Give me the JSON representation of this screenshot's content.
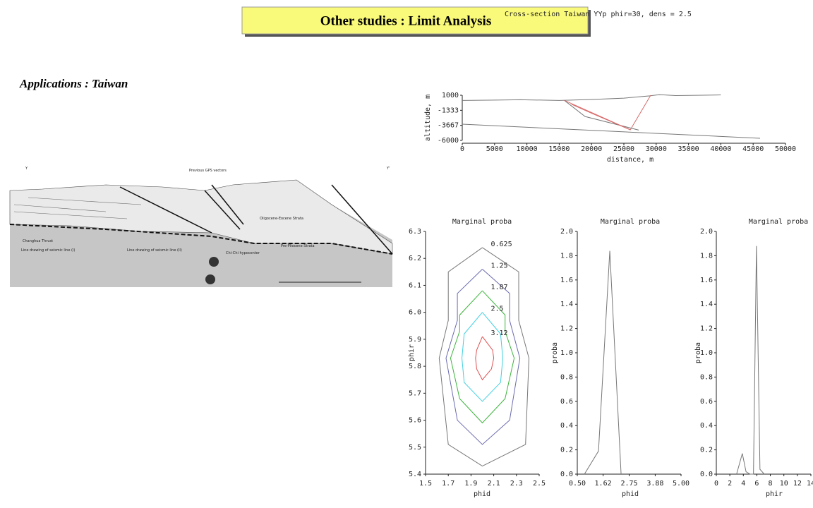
{
  "header": {
    "title": "Other studies : Limit Analysis"
  },
  "subtitle": "Applications : Taiwan",
  "figure": {
    "labels": [
      "Y",
      "Y'",
      "Previous GPS vectors",
      "Changhua Thrust",
      "Line drawing of seismic line (I)",
      "Line drawing of seismic line (II)",
      "Chi-Chi hypocenter",
      "Pre-Pliocene Strata",
      "Oligocene-Eocene Strata"
    ]
  },
  "chart_data": [
    {
      "type": "line",
      "title": "Cross-section Taiwan YYp phir=30, dens = 2.5",
      "xlabel": "distance, m",
      "ylabel": "altitude, m",
      "xlim": [
        0,
        50000
      ],
      "xticks": [
        0,
        5000,
        10000,
        15000,
        20000,
        25000,
        30000,
        35000,
        40000,
        45000,
        50000
      ],
      "ylim": [
        -6000,
        1000
      ],
      "yticks": [
        -6000,
        -3667,
        -1333,
        1000
      ],
      "series": [
        {
          "color": "#777777",
          "x": [
            0,
            5000,
            9000,
            15000,
            20000,
            25000,
            29000,
            30500,
            33000,
            37000,
            40000
          ],
          "values": [
            200,
            250,
            300,
            200,
            350,
            550,
            900,
            1100,
            950,
            1000,
            1050
          ]
        },
        {
          "color": "#777777",
          "x": [
            15800,
            19000,
            27300
          ],
          "values": [
            200,
            -2300,
            -4400
          ]
        },
        {
          "color": "#d86a6a",
          "x": [
            15800,
            26000,
            29150
          ],
          "values": [
            200,
            -4360,
            1000
          ]
        },
        {
          "color": "#d86a6a",
          "x": [
            16900,
            19800,
            26000
          ],
          "values": [
            -400,
            -1700,
            -4360
          ]
        },
        {
          "color": "#777777",
          "x": [
            0,
            46070
          ],
          "values": [
            -3485,
            -5670
          ]
        }
      ]
    },
    {
      "type": "contour",
      "title": "Marginal proba",
      "xlabel": "phid",
      "ylabel": "phir",
      "xlim": [
        1.5,
        2.5
      ],
      "xticks": [
        1.5,
        1.7,
        1.9,
        2.1,
        2.3,
        2.5
      ],
      "ylim": [
        5.4,
        6.3
      ],
      "yticks": [
        5.4,
        5.5,
        5.6,
        5.7,
        5.8,
        5.9,
        {
          "value": 6,
          "label": "6.0"
        },
        6.1,
        6.2,
        6.3
      ],
      "contours": [
        {
          "level": 0.625,
          "color": "#777777",
          "x": [
            2.0,
            2.32,
            2.32,
            2.41,
            2.38,
            2.0,
            1.7,
            1.62,
            1.7,
            1.7,
            2.0
          ],
          "y": [
            6.24,
            6.15,
            5.97,
            5.83,
            5.51,
            5.43,
            5.51,
            5.83,
            5.97,
            6.15,
            6.24
          ]
        },
        {
          "level": 1.25,
          "color": "#6a6ab0",
          "x": [
            2.0,
            2.24,
            2.24,
            2.33,
            2.24,
            2.0,
            1.78,
            1.68,
            1.78,
            1.78,
            2.0
          ],
          "y": [
            6.16,
            6.07,
            5.97,
            5.83,
            5.6,
            5.51,
            5.6,
            5.83,
            5.97,
            6.07,
            6.16
          ]
        },
        {
          "level": 1.87,
          "color": "#3cb43c",
          "x": [
            2.0,
            2.2,
            2.2,
            2.28,
            2.2,
            2.0,
            1.8,
            1.72,
            1.8,
            1.8,
            2.0
          ],
          "y": [
            6.08,
            5.99,
            5.93,
            5.83,
            5.68,
            5.59,
            5.68,
            5.83,
            5.93,
            5.99,
            6.08
          ]
        },
        {
          "level": 2.5,
          "color": "#40d0e0",
          "x": [
            2.0,
            2.16,
            2.18,
            2.16,
            2.0,
            1.84,
            1.82,
            1.84,
            2.0
          ],
          "y": [
            6.0,
            5.92,
            5.83,
            5.74,
            5.67,
            5.74,
            5.83,
            5.92,
            6.0
          ]
        },
        {
          "level": 3.12,
          "color": "#e05050",
          "x": [
            2.0,
            2.09,
            2.1,
            2.08,
            2.0,
            1.95,
            1.94,
            1.95,
            2.0
          ],
          "y": [
            5.91,
            5.86,
            5.83,
            5.79,
            5.75,
            5.79,
            5.83,
            5.86,
            5.91
          ]
        }
      ]
    },
    {
      "type": "line",
      "title": "Marginal proba",
      "xlabel": "phid",
      "ylabel": "proba",
      "xlim": [
        0.5,
        5.0
      ],
      "xticks": [
        {
          "value": 0.5,
          "label": "0.50"
        },
        1.62,
        2.75,
        3.88,
        {
          "value": 5,
          "label": "5.00"
        }
      ],
      "ylim": [
        0,
        2.0
      ],
      "yticks": [
        {
          "value": 0,
          "label": "0.0"
        },
        0.2,
        0.4,
        0.6,
        0.8,
        {
          "value": 1,
          "label": "1.0"
        },
        1.2,
        1.4,
        1.6,
        1.8,
        {
          "value": 2,
          "label": "2.0"
        }
      ],
      "series": [
        {
          "color": "#777777",
          "x": [
            0.81,
            1.42,
            1.91,
            2.4
          ],
          "values": [
            0,
            0.19,
            1.84,
            0
          ]
        }
      ]
    },
    {
      "type": "line",
      "title": "Marginal proba",
      "xlabel": "phir",
      "ylabel": "proba",
      "xlim": [
        0,
        14
      ],
      "xticks": [
        0,
        2,
        4,
        6,
        8,
        10,
        12,
        14
      ],
      "ylim": [
        0,
        2.0
      ],
      "yticks": [
        {
          "value": 0,
          "label": "0.0"
        },
        0.2,
        0.4,
        0.6,
        0.8,
        {
          "value": 1,
          "label": "1.0"
        },
        1.2,
        1.4,
        1.6,
        1.8,
        {
          "value": 2,
          "label": "2.0"
        }
      ],
      "series": [
        {
          "color": "#777777",
          "x": [
            3.0,
            3.85,
            4.4,
            5.0,
            5.5,
            5.94,
            6.46,
            7.1
          ],
          "values": [
            0,
            0.17,
            0.02,
            0,
            0,
            1.88,
            0.04,
            0
          ]
        }
      ]
    }
  ]
}
